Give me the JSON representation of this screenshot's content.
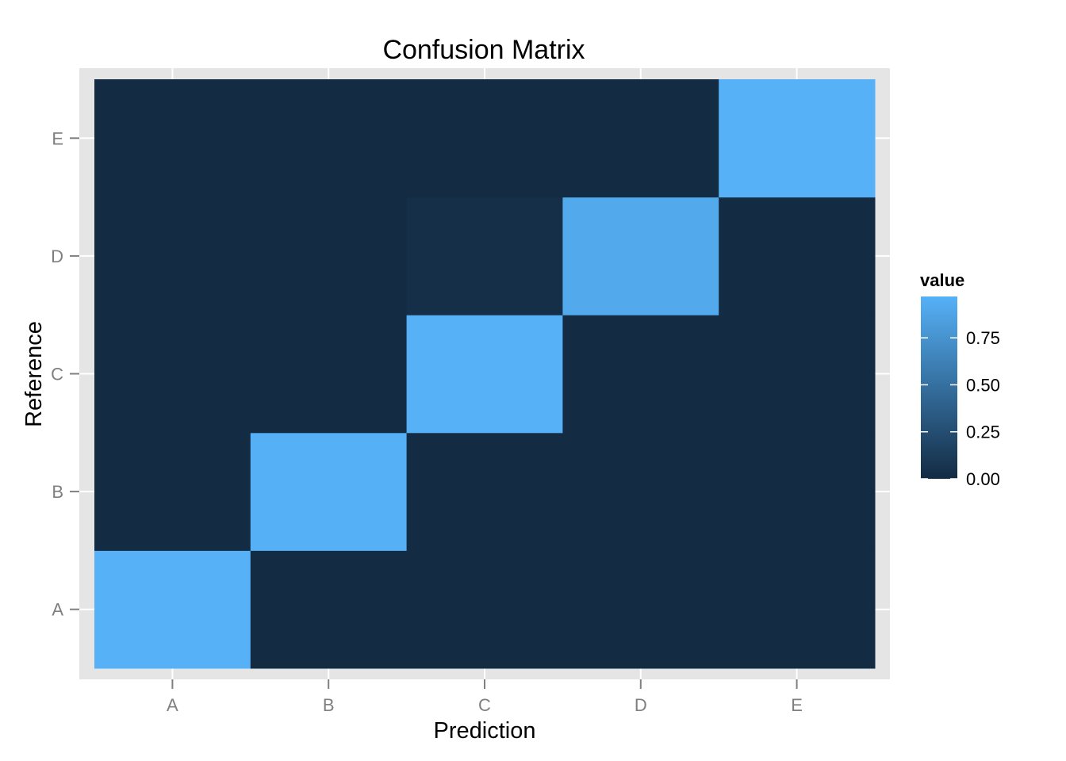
{
  "chart_data": {
    "type": "heatmap",
    "title": "Confusion Matrix",
    "xlabel": "Prediction",
    "ylabel": "Reference",
    "x_categories": [
      "A",
      "B",
      "C",
      "D",
      "E"
    ],
    "y_categories": [
      "A",
      "B",
      "C",
      "D",
      "E"
    ],
    "values": [
      [
        0.97,
        0.0,
        0.0,
        0.0,
        0.0
      ],
      [
        0.0,
        0.96,
        0.0,
        0.005,
        0.0
      ],
      [
        0.0,
        0.005,
        0.97,
        0.0,
        0.0
      ],
      [
        0.0,
        0.0,
        0.03,
        0.91,
        0.0
      ],
      [
        0.0,
        0.0,
        0.005,
        0.0,
        0.97
      ]
    ],
    "value_note_unused": "",
    "legend": {
      "title": "value",
      "ticks": [
        0.0,
        0.25,
        0.5,
        0.75
      ],
      "tick_labels": [
        "0.00",
        "0.25",
        "0.50",
        "0.75"
      ],
      "range": [
        0,
        0.97
      ],
      "low_color": "#132B43",
      "high_color": "#56B1F7",
      "placement": "right"
    },
    "panel_background": "#E5E5E5",
    "grid_color": "#FFFFFF",
    "grid": true
  }
}
